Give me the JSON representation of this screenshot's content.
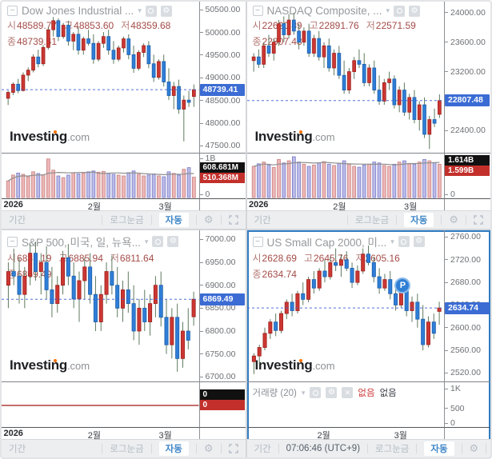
{
  "labels": {
    "open": "시",
    "high": "고",
    "low": "저",
    "close": "종"
  },
  "watermark": {
    "brand": "Investing",
    "tld": ".com"
  },
  "toolbar": {
    "period": "기간",
    "log_scale": "로그눈금",
    "auto": "자동"
  },
  "colors": {
    "up": "#cc3733",
    "up_border": "#9e221e",
    "down": "#2f7ed8",
    "down_border": "#1d5fa8",
    "wick": "#5f7a5f",
    "price_line": "#3f62d2",
    "tag_bg": "#3b6cd4",
    "vol_up": "rgba(226,138,138,0.62)",
    "vol_up_border": "#c98080",
    "vol_down": "rgba(132,132,214,0.55)",
    "vol_down_border": "#7b7bc8",
    "vol_ma": "#8f8f8f",
    "zero_line": "#b23b3b"
  },
  "panels": [
    {
      "title": "Dow Jones Industrial ...",
      "open": "48589.77",
      "high": "48853.60",
      "low": "48359.68",
      "close": "48739.41",
      "price_tag": "48739.41",
      "vol_tags": [
        {
          "label": "608.681M"
        },
        {
          "label": "510.368M"
        }
      ],
      "x_ticks": [
        {
          "label": "2026",
          "pos": 0.01
        },
        {
          "label": "2월",
          "pos": 0.47
        },
        {
          "label": "3월",
          "pos": 0.83
        }
      ]
    },
    {
      "title": "NASDAQ Composite, ...",
      "open": "22620.89",
      "high": "22891.76",
      "low": "22571.59",
      "close": "22807.48",
      "price_tag": "22807.48",
      "vol_tags": [
        {
          "label": "1.614B"
        },
        {
          "label": "1.599B"
        }
      ],
      "x_ticks": [
        {
          "label": "2026",
          "pos": 0.01
        },
        {
          "label": "2월",
          "pos": 0.47
        },
        {
          "label": "3월",
          "pos": 0.83
        }
      ]
    },
    {
      "title": "S&P 500, 미국, 일, 뉴욕...",
      "open": "6831.19",
      "high": "6885.94",
      "low": "6811.64",
      "close": "6869.49",
      "price_tag": "6869.49",
      "vol_tags": [
        {
          "label": "0"
        },
        {
          "label": "0"
        }
      ],
      "x_ticks": [
        {
          "label": "2026",
          "pos": 0.01
        },
        {
          "label": "2월",
          "pos": 0.47
        },
        {
          "label": "3월",
          "pos": 0.83
        }
      ]
    },
    {
      "title": "US Small Cap 2000, 미...",
      "open": "2628.69",
      "high": "2645.76",
      "low": "2605.16",
      "close": "2634.74",
      "price_tag": "2634.74",
      "badge": "P",
      "time": "07:06:46 (UTC+9)",
      "volume_label": "거래량 (20)",
      "none_red": "없음",
      "none_gray": "없음",
      "vol_tags": [],
      "x_ticks": [
        {
          "label": "2월",
          "pos": 0.39
        },
        {
          "label": "3월",
          "pos": 0.78
        }
      ]
    }
  ],
  "chart_data": [
    {
      "type": "candlestick",
      "title": "Dow Jones Industrial",
      "ylim": [
        47350,
        50680
      ],
      "y_ticks": [
        50500,
        50000,
        49500,
        49000,
        48500,
        48000,
        47500
      ],
      "candles": [
        [
          48550,
          48720,
          48400,
          48680
        ],
        [
          48680,
          48900,
          48620,
          48860
        ],
        [
          48860,
          48980,
          48660,
          48720
        ],
        [
          48720,
          49120,
          48700,
          49060
        ],
        [
          49060,
          49230,
          48930,
          49170
        ],
        [
          49170,
          49520,
          49120,
          49460
        ],
        [
          49460,
          49620,
          49230,
          49310
        ],
        [
          49310,
          49720,
          49260,
          49670
        ],
        [
          49670,
          50120,
          49620,
          50060
        ],
        [
          50060,
          50340,
          49910,
          50260
        ],
        [
          50260,
          50310,
          49810,
          49910
        ],
        [
          49910,
          50210,
          49860,
          50160
        ],
        [
          50160,
          50260,
          49710,
          49810
        ],
        [
          49810,
          50010,
          49610,
          49960
        ],
        [
          49960,
          50110,
          49510,
          49610
        ],
        [
          49610,
          49910,
          49510,
          49860
        ],
        [
          49860,
          50060,
          49710,
          49760
        ],
        [
          49760,
          49960,
          49310,
          49410
        ],
        [
          49410,
          49810,
          49360,
          49760
        ],
        [
          49760,
          50010,
          49660,
          49910
        ],
        [
          49910,
          50060,
          49510,
          49610
        ],
        [
          49610,
          49810,
          49310,
          49410
        ],
        [
          49410,
          49710,
          49360,
          49660
        ],
        [
          49660,
          49910,
          49560,
          49860
        ],
        [
          49860,
          49960,
          49410,
          49510
        ],
        [
          49510,
          49710,
          49110,
          49210
        ],
        [
          49210,
          49610,
          49160,
          49560
        ],
        [
          49560,
          49760,
          49460,
          49710
        ],
        [
          49710,
          49810,
          49210,
          49310
        ],
        [
          49310,
          49510,
          48910,
          49010
        ],
        [
          49010,
          49410,
          48960,
          49360
        ],
        [
          49360,
          49510,
          48810,
          48910
        ],
        [
          48910,
          49210,
          48510,
          48610
        ],
        [
          48610,
          48910,
          48310,
          48810
        ],
        [
          48810,
          48960,
          48210,
          48310
        ],
        [
          48310,
          48610,
          47600,
          48510
        ],
        [
          48510,
          48710,
          48360,
          48460
        ],
        [
          48589.77,
          48853.6,
          48359.68,
          48739.41
        ]
      ],
      "volumes": [
        420,
        560,
        610,
        580,
        520,
        640,
        600,
        570,
        950,
        680,
        540,
        500,
        560,
        620,
        590,
        610,
        640,
        660,
        630,
        650,
        600,
        580,
        560,
        540,
        620,
        660,
        580,
        540,
        560,
        590,
        540,
        520,
        640,
        600,
        560,
        700,
        740,
        510
      ],
      "vol_max": 1080,
      "vol_ticks": [
        {
          "v": 1000,
          "label": "1B"
        },
        {
          "v": 0,
          "label": "0"
        }
      ],
      "vol_tag_y": [
        11,
        24
      ]
    },
    {
      "type": "candlestick",
      "title": "NASDAQ Composite",
      "ylim": [
        22100,
        24150
      ],
      "y_ticks": [
        24000,
        23600,
        23200,
        22800,
        22400
      ],
      "candles": [
        [
          23350,
          23450,
          23200,
          23400
        ],
        [
          23400,
          23500,
          23250,
          23300
        ],
        [
          23300,
          23600,
          23250,
          23550
        ],
        [
          23550,
          23700,
          23400,
          23450
        ],
        [
          23450,
          23650,
          23350,
          23600
        ],
        [
          23600,
          23900,
          23550,
          23850
        ],
        [
          23850,
          23950,
          23600,
          23700
        ],
        [
          23700,
          23980,
          23650,
          23900
        ],
        [
          23900,
          24000,
          23700,
          23750
        ],
        [
          23750,
          23850,
          23500,
          23600
        ],
        [
          23600,
          23800,
          23550,
          23750
        ],
        [
          23750,
          23850,
          23400,
          23450
        ],
        [
          23450,
          23700,
          23400,
          23650
        ],
        [
          23650,
          23750,
          23350,
          23400
        ],
        [
          23400,
          23600,
          23250,
          23550
        ],
        [
          23550,
          23650,
          23200,
          23250
        ],
        [
          23250,
          23500,
          23150,
          23450
        ],
        [
          23450,
          23550,
          23100,
          23150
        ],
        [
          23150,
          23350,
          22900,
          22950
        ],
        [
          22950,
          23250,
          22900,
          23200
        ],
        [
          23200,
          23400,
          23100,
          23350
        ],
        [
          23350,
          23500,
          23250,
          23300
        ],
        [
          23300,
          23450,
          23000,
          23050
        ],
        [
          23050,
          23300,
          23000,
          23250
        ],
        [
          23250,
          23350,
          22900,
          22950
        ],
        [
          22950,
          23150,
          22750,
          22800
        ],
        [
          22800,
          23100,
          22750,
          23050
        ],
        [
          23050,
          23200,
          22950,
          23100
        ],
        [
          23100,
          23150,
          22700,
          22750
        ],
        [
          22750,
          23000,
          22650,
          22950
        ],
        [
          22950,
          23050,
          22600,
          22650
        ],
        [
          22650,
          22900,
          22550,
          22850
        ],
        [
          22850,
          22950,
          22500,
          22550
        ],
        [
          22550,
          22800,
          22400,
          22750
        ],
        [
          22750,
          22850,
          22300,
          22350
        ],
        [
          22350,
          22600,
          22150,
          22550
        ],
        [
          22550,
          22700,
          22450,
          22500
        ],
        [
          22620.89,
          22891.76,
          22571.59,
          22807.48
        ]
      ],
      "volumes": [
        1.5,
        1.62,
        1.7,
        1.55,
        1.45,
        1.82,
        1.66,
        1.76,
        1.95,
        1.7,
        1.6,
        1.5,
        1.56,
        1.66,
        1.72,
        1.6,
        1.54,
        1.64,
        1.76,
        1.6,
        1.5,
        1.46,
        1.56,
        1.6,
        1.7,
        1.66,
        1.54,
        1.5,
        1.6,
        1.7,
        1.76,
        1.64,
        1.6,
        1.7,
        1.82,
        1.76,
        1.66,
        1.599
      ],
      "vol_max": 2.1,
      "vol_ticks": [
        {
          "v": 0,
          "label": "0"
        }
      ],
      "vol_tag_y": [
        2,
        15
      ]
    },
    {
      "type": "candlestick",
      "title": "S&P 500",
      "ylim": [
        6690,
        7020
      ],
      "y_ticks": [
        7000,
        6950,
        6900,
        6850,
        6800,
        6750,
        6700
      ],
      "candles": [
        [
          6900,
          6950,
          6850,
          6930
        ],
        [
          6930,
          6980,
          6900,
          6920
        ],
        [
          6920,
          6960,
          6860,
          6880
        ],
        [
          6880,
          6940,
          6850,
          6920
        ],
        [
          6920,
          6990,
          6900,
          6970
        ],
        [
          6970,
          6995,
          6910,
          6930
        ],
        [
          6930,
          6970,
          6880,
          6950
        ],
        [
          6950,
          6985,
          6870,
          6890
        ],
        [
          6890,
          6940,
          6830,
          6860
        ],
        [
          6860,
          6920,
          6840,
          6900
        ],
        [
          6900,
          6975,
          6880,
          6960
        ],
        [
          6960,
          6990,
          6900,
          6920
        ],
        [
          6920,
          6950,
          6850,
          6870
        ],
        [
          6870,
          6930,
          6820,
          6910
        ],
        [
          6910,
          6960,
          6870,
          6940
        ],
        [
          6940,
          6970,
          6860,
          6880
        ],
        [
          6880,
          6920,
          6800,
          6820
        ],
        [
          6820,
          6900,
          6800,
          6880
        ],
        [
          6880,
          6950,
          6860,
          6930
        ],
        [
          6930,
          6965,
          6880,
          6900
        ],
        [
          6900,
          6940,
          6830,
          6850
        ],
        [
          6850,
          6910,
          6820,
          6890
        ],
        [
          6890,
          6930,
          6840,
          6860
        ],
        [
          6860,
          6900,
          6780,
          6800
        ],
        [
          6800,
          6870,
          6770,
          6850
        ],
        [
          6850,
          6890,
          6800,
          6820
        ],
        [
          6820,
          6880,
          6790,
          6860
        ],
        [
          6860,
          6920,
          6830,
          6900
        ],
        [
          6900,
          6930,
          6810,
          6830
        ],
        [
          6830,
          6870,
          6750,
          6770
        ],
        [
          6770,
          6850,
          6740,
          6830
        ],
        [
          6830,
          6860,
          6711,
          6740
        ],
        [
          6740,
          6820,
          6720,
          6800
        ],
        [
          6800,
          6850,
          6760,
          6780
        ],
        [
          6831.19,
          6885.94,
          6811.64,
          6869.49
        ]
      ],
      "volumes": null,
      "vol_max": 0,
      "vol_ticks": [],
      "vol_tag_y": [
        9,
        22
      ],
      "zero_line_y": 29
    },
    {
      "type": "candlestick",
      "title": "US Small Cap 2000",
      "ylim": [
        2505,
        2772
      ],
      "y_ticks": [
        2760,
        2720,
        2680,
        2640,
        2600,
        2560,
        2520
      ],
      "candles": [
        [
          2540,
          2555,
          2518,
          2550
        ],
        [
          2550,
          2570,
          2535,
          2565
        ],
        [
          2565,
          2600,
          2560,
          2590
        ],
        [
          2590,
          2615,
          2580,
          2610
        ],
        [
          2610,
          2625,
          2585,
          2595
        ],
        [
          2595,
          2630,
          2590,
          2625
        ],
        [
          2625,
          2650,
          2615,
          2645
        ],
        [
          2645,
          2660,
          2620,
          2630
        ],
        [
          2630,
          2665,
          2625,
          2660
        ],
        [
          2660,
          2680,
          2640,
          2650
        ],
        [
          2650,
          2690,
          2645,
          2685
        ],
        [
          2685,
          2700,
          2660,
          2670
        ],
        [
          2670,
          2705,
          2665,
          2700
        ],
        [
          2700,
          2720,
          2680,
          2690
        ],
        [
          2690,
          2725,
          2685,
          2715
        ],
        [
          2715,
          2740,
          2700,
          2710
        ],
        [
          2710,
          2730,
          2690,
          2720
        ],
        [
          2720,
          2735,
          2700,
          2705
        ],
        [
          2705,
          2715,
          2670,
          2680
        ],
        [
          2680,
          2710,
          2675,
          2700
        ],
        [
          2700,
          2740,
          2695,
          2730
        ],
        [
          2730,
          2745,
          2710,
          2715
        ],
        [
          2715,
          2725,
          2680,
          2690
        ],
        [
          2690,
          2705,
          2660,
          2670
        ],
        [
          2670,
          2695,
          2665,
          2685
        ],
        [
          2685,
          2700,
          2650,
          2660
        ],
        [
          2660,
          2680,
          2630,
          2640
        ],
        [
          2640,
          2670,
          2635,
          2665
        ],
        [
          2665,
          2675,
          2620,
          2630
        ],
        [
          2630,
          2655,
          2610,
          2645
        ],
        [
          2645,
          2660,
          2600,
          2615
        ],
        [
          2615,
          2640,
          2560,
          2570
        ],
        [
          2570,
          2620,
          2565,
          2610
        ],
        [
          2610,
          2625,
          2580,
          2590
        ],
        [
          2628.69,
          2645.76,
          2605.16,
          2634.74
        ]
      ],
      "volumes": null,
      "vol_max": 1150,
      "vol_ticks": [
        {
          "v": 1000,
          "label": "1K"
        },
        {
          "v": 500,
          "label": "500"
        },
        {
          "v": 0,
          "label": "0"
        }
      ],
      "vol_tag_y": []
    }
  ]
}
